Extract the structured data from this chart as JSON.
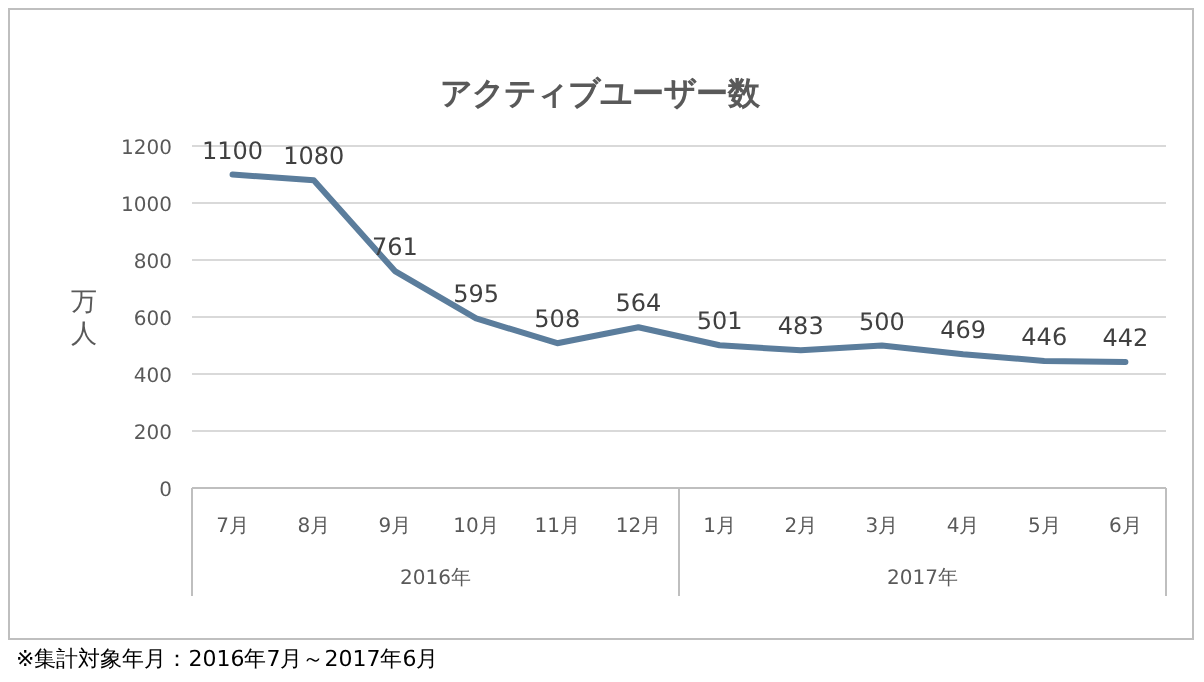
{
  "chart_data": {
    "type": "line",
    "title": "アクティブユーザー数",
    "ylabel": "万人",
    "categories": [
      "7月",
      "8月",
      "9月",
      "10月",
      "11月",
      "12月",
      "1月",
      "2月",
      "3月",
      "4月",
      "5月",
      "6月"
    ],
    "series": [
      {
        "color": "#5b7d9c",
        "values": [
          1100,
          1080,
          761,
          595,
          508,
          564,
          501,
          483,
          500,
          469,
          446,
          442
        ]
      }
    ],
    "ylim": [
      0,
      1200
    ],
    "yticks": [
      0,
      200,
      400,
      600,
      800,
      1000,
      1200
    ],
    "grid": "y",
    "data_labels": true,
    "marker": "none",
    "line_style": "solid",
    "annotations": [
      "2016年",
      "2017年",
      "※集計対象年月：2016年7月～2017年6月"
    ]
  }
}
